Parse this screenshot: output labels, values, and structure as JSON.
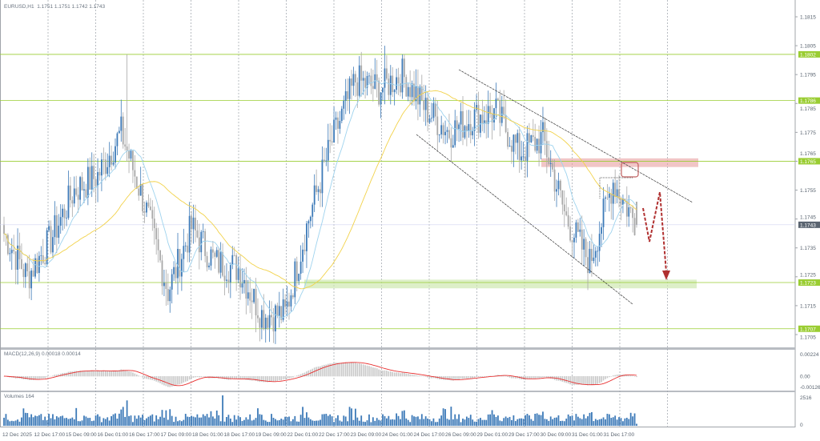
{
  "header": {
    "symbol": "EURUSD,H1",
    "ohlc": "1.1751 1.1751 1.1742 1.1743"
  },
  "colors": {
    "bull": "#3d7ab8",
    "bear": "#a8a8a8",
    "ma_fast": "#9fd3ee",
    "ma_slow": "#f2d24a",
    "level": "#9acd32",
    "resistance_zone": "#e8a0a0",
    "support_zone": "#cfe8b0",
    "macd_signal": "#e83030",
    "volume": "#3d7ab8",
    "forecast_arrow": "#b03030",
    "last_price_tag": "#5a6470"
  },
  "chart_data": [
    {
      "type": "candlestick",
      "title": "EURUSD,H1",
      "last_candle": {
        "open": 1.1751,
        "high": 1.1751,
        "low": 1.1742,
        "close": 1.1743
      },
      "ylim": [
        1.17,
        1.182
      ],
      "price_ticks": [
        "1.1815",
        "1.1805",
        "1.1795",
        "1.1785",
        "1.1775",
        "1.1765",
        "1.1755",
        "1.1745",
        "1.1735",
        "1.1725",
        "1.1715",
        "1.1705"
      ],
      "levels": [
        {
          "value": 1.1802,
          "label": "1.1802"
        },
        {
          "value": 1.1786,
          "label": "1.1786"
        },
        {
          "value": 1.1765,
          "label": "1.1765"
        },
        {
          "value": 1.1723,
          "label": "1.1723"
        },
        {
          "value": 1.1707,
          "label": "1.1707"
        }
      ],
      "last_price": {
        "value": 1.1743,
        "label": "1.1743"
      },
      "closes_12h_approx": [
        1.174,
        1.1725,
        1.1738,
        1.1755,
        1.176,
        1.1775,
        1.175,
        1.172,
        1.1742,
        1.173,
        1.1728,
        1.1712,
        1.1712,
        1.1745,
        1.1772,
        1.1793,
        1.179,
        1.1795,
        1.1783,
        1.1775,
        1.178,
        1.1782,
        1.1768,
        1.1773,
        1.1745,
        1.173,
        1.1758,
        1.1743
      ],
      "notable_highs": [
        {
          "time": "16 Dec 01:00",
          "value": 1.1802
        },
        {
          "time": "24 Dec 01:00",
          "value": 1.1805
        }
      ],
      "resistance_zone": [
        1.1763,
        1.1766
      ],
      "support_zone": [
        1.1721,
        1.1724
      ],
      "moving_averages": [
        "fast (light blue)",
        "slow (yellow)"
      ],
      "annotations": [
        "descending channel",
        "resistance zone 1.1765",
        "support zone 1.1723",
        "forecast: bounce then drop to 1.1723"
      ],
      "time_labels": [
        "12 Dec 2025",
        "12 Dec 17:00",
        "15 Dec 09:00",
        "16 Dec 01:00",
        "16 Dec 17:00",
        "17 Dec 09:00",
        "18 Dec 01:00",
        "18 Dec 17:00",
        "19 Dec 09:00",
        "22 Dec 01:00",
        "22 Dec 17:00",
        "23 Dec 09:00",
        "24 Dec 01:00",
        "24 Dec 17:00",
        "26 Dec 09:00",
        "29 Dec 01:00",
        "29 Dec 17:00",
        "30 Dec 09:00",
        "31 Dec 01:00",
        "31 Dec 17:00"
      ],
      "grid": "vertical dashed, daily"
    },
    {
      "type": "bar+line",
      "title": "MACD(12,26,9) 0.00018 0.00014",
      "main": 0.00018,
      "signal": 0.00014,
      "ticks": [
        "0.00224",
        "0.00",
        "-0.00126"
      ],
      "ylim": [
        -0.00126,
        0.00224
      ]
    },
    {
      "type": "bar",
      "title": "Volumes 164",
      "last": 164,
      "ticks": [
        "2516",
        "0"
      ],
      "ylim": [
        0,
        2516
      ]
    }
  ]
}
